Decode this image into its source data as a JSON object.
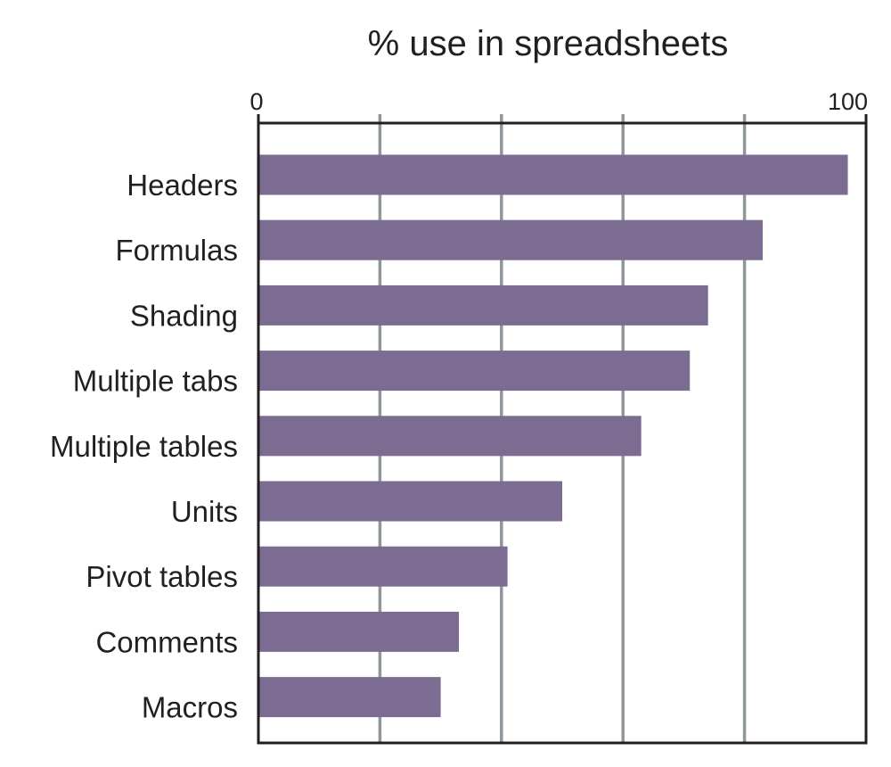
{
  "chart_data": {
    "type": "bar",
    "orientation": "horizontal",
    "title": "% use in spreadsheets",
    "xlabel": "",
    "ylabel": "",
    "categories": [
      "Headers",
      "Formulas",
      "Shading",
      "Multiple tabs",
      "Multiple tables",
      "Units",
      "Pivot tables",
      "Comments",
      "Macros"
    ],
    "values": [
      97,
      83,
      74,
      71,
      63,
      50,
      41,
      33,
      30
    ],
    "xlim": [
      0,
      100
    ],
    "ticks": [
      {
        "value": 0,
        "label": "0"
      },
      {
        "value": 100,
        "label": "100"
      }
    ],
    "gridlines": [
      20,
      40,
      60,
      80
    ],
    "grid": true,
    "legend": "none",
    "bar_color": "#7d6c91",
    "grid_color": "#8f969c",
    "axis_color": "#231f20",
    "text_color": "#231f20"
  }
}
